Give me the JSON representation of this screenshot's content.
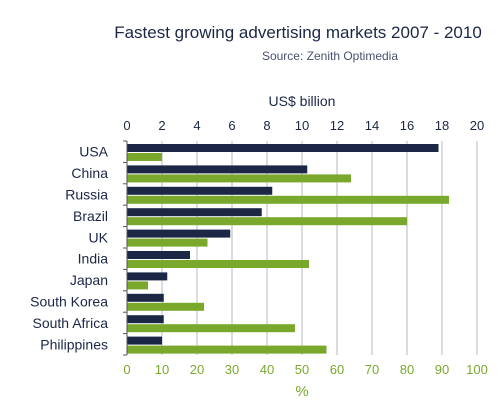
{
  "chart_data": {
    "type": "bar",
    "title": "Fastest growing advertising markets 2007 - 2010",
    "subtitle": "Source: Zenith Optimedia",
    "categories": [
      "USA",
      "China",
      "Russia",
      "Brazil",
      "UK",
      "India",
      "Japan",
      "South Korea",
      "South Africa",
      "Philippines"
    ],
    "series": [
      {
        "axis": "top",
        "color": "#1b2745",
        "values": [
          17.8,
          10.3,
          8.3,
          7.7,
          5.9,
          3.6,
          2.3,
          2.1,
          2.1,
          2.0
        ]
      },
      {
        "axis": "bottom",
        "color": "#7aa82c",
        "values": [
          10,
          64,
          92,
          80,
          23,
          52,
          6,
          22,
          48,
          57
        ]
      }
    ],
    "top_axis": {
      "label": "US$ billion",
      "range": [
        0,
        20
      ],
      "ticks": [
        "0",
        "2",
        "4",
        "6",
        "8",
        "10",
        "12",
        "14",
        "16",
        "18",
        "20"
      ]
    },
    "bottom_axis": {
      "label": "%",
      "range": [
        0,
        100
      ],
      "ticks": [
        "0",
        "10",
        "20",
        "30",
        "40",
        "50",
        "60",
        "70",
        "80",
        "90",
        "100"
      ]
    },
    "colors": {
      "title": "#1b2745",
      "subtitle": "#4a5170",
      "top_text": "#1b2745",
      "bottom_text": "#7aa82c",
      "grid": "#b4b8c4",
      "axis": "#555555"
    },
    "grid": true
  }
}
